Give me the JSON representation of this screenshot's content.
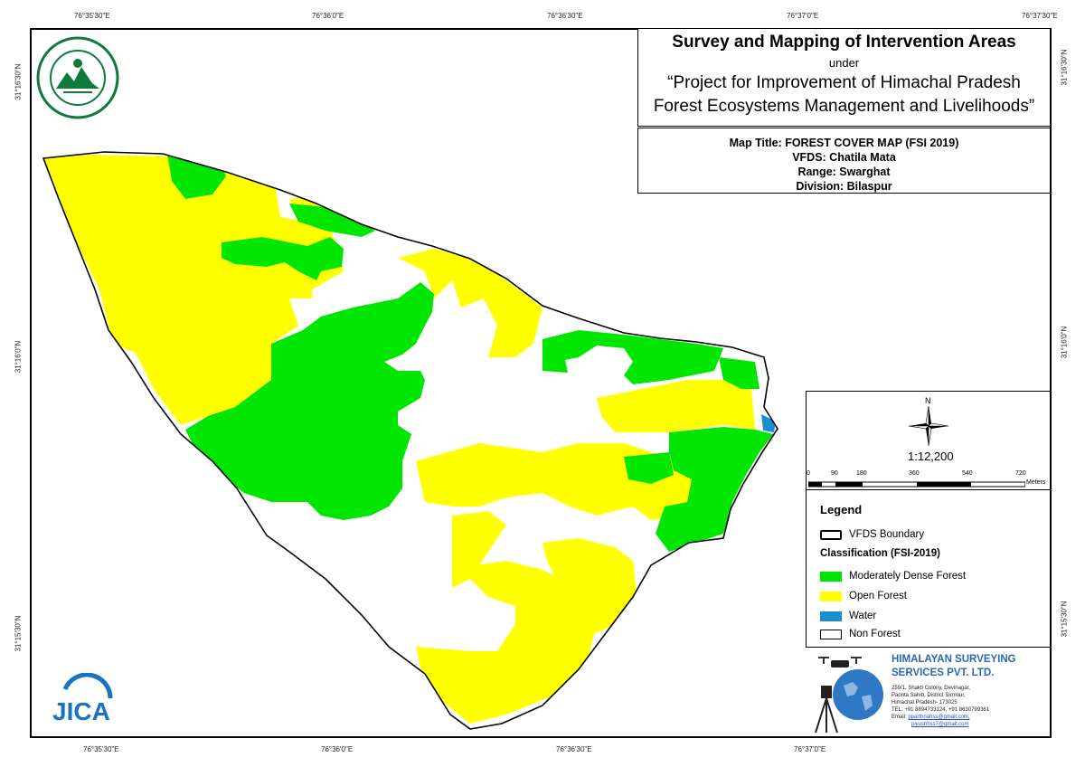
{
  "title_block": {
    "title": "Survey and Mapping of Intervention Areas",
    "under": "under",
    "project_line1": "“Project for Improvement of Himachal Pradesh",
    "project_line2": "Forest Ecosystems Management and Livelihoods”"
  },
  "map_info": {
    "map_title": "Map Title: FOREST COVER MAP (FSI 2019)",
    "vfds": "VFDS: Chatila Mata",
    "range": "Range: Swarghat",
    "division": "Division: Bilaspur"
  },
  "graticule": {
    "top": [
      "76°35'30\"E",
      "76°36'0\"E",
      "76°36'30\"E",
      "76°37'0\"E",
      "76°37'30\"E"
    ],
    "bottom": [
      "76°35'30\"E",
      "76°36'0\"E",
      "76°36'30\"E",
      "76°37'0\"E"
    ],
    "left": [
      "31°16'30\"N",
      "31°16'0\"N",
      "31°15'30\"N"
    ],
    "right": [
      "31°16'30\"N",
      "31°16'0\"N",
      "31°15'30\"N"
    ]
  },
  "north_arrow": {
    "letter": "N",
    "icon": "north-arrow-icon"
  },
  "scale": {
    "ratio": "1:12,200",
    "ticks": [
      "0",
      "90",
      "180",
      "360",
      "540",
      "720"
    ],
    "unit": "Meters"
  },
  "legend": {
    "title": "Legend",
    "boundary_label": "VFDS Boundary",
    "classification_title": "Classification (FSI-2019)",
    "items": [
      {
        "label": "Moderately Dense Forest",
        "color": "#00e600"
      },
      {
        "label": "Open Forest",
        "color": "#ffff00"
      },
      {
        "label": "Water",
        "color": "#1a8fd0"
      },
      {
        "label": "Non Forest",
        "color": "#ffffff"
      }
    ]
  },
  "company": {
    "name_line1": "HIMALAYAN SURVEYING",
    "name_line2": "SERVICES PVT. LTD.",
    "address": [
      "259/1, Shakti Colony, Devinagar,",
      "Paonta Sahib, District Sirmour,",
      "Himachal Pradesh- 173025",
      "TEL: +91 8894733124, +91 8630799361"
    ],
    "email_label": "Email:",
    "emails": [
      "pparthnahss@gmail.com,",
      "piyushhss7@gmail.com"
    ]
  },
  "logos": {
    "forest_dept": "forest-department-emblem",
    "jica": "jica"
  },
  "colors": {
    "moderately_dense": "#00e600",
    "open_forest": "#ffff00",
    "water": "#1a8fd0",
    "boundary": "#000000",
    "company_blue": "#2b67b0"
  }
}
